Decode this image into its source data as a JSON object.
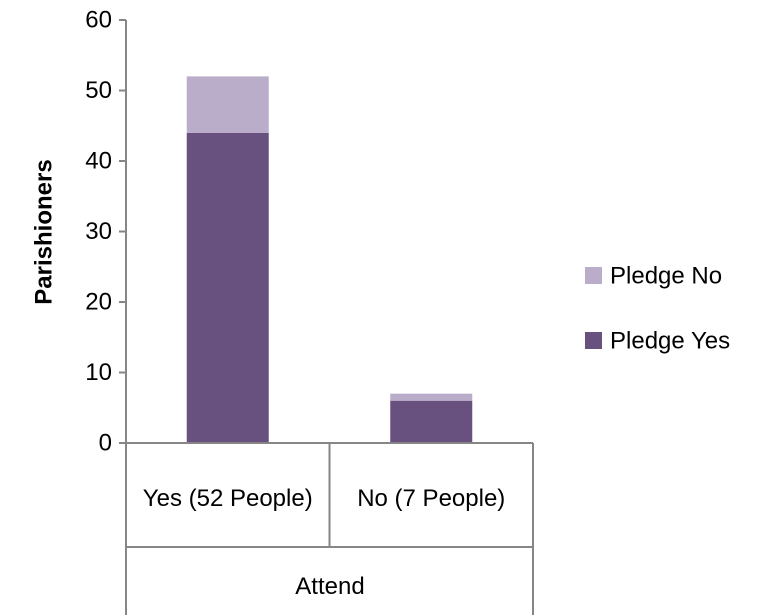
{
  "chart_data": {
    "type": "bar",
    "stacked": true,
    "categories": [
      "Yes (52 People)",
      "No (7 People)"
    ],
    "category_group_label": "Attend",
    "series": [
      {
        "name": "Pledge Yes",
        "values": [
          44,
          6
        ],
        "color": "#68507f"
      },
      {
        "name": "Pledge No",
        "values": [
          8,
          1
        ],
        "color": "#b9adc9"
      }
    ],
    "title": "",
    "xlabel": "Attend",
    "ylabel": "Parishioners",
    "ylim": [
      0,
      60
    ],
    "yticks": [
      0,
      10,
      20,
      30,
      40,
      50,
      60
    ],
    "grid": false,
    "legend_position": "right"
  }
}
